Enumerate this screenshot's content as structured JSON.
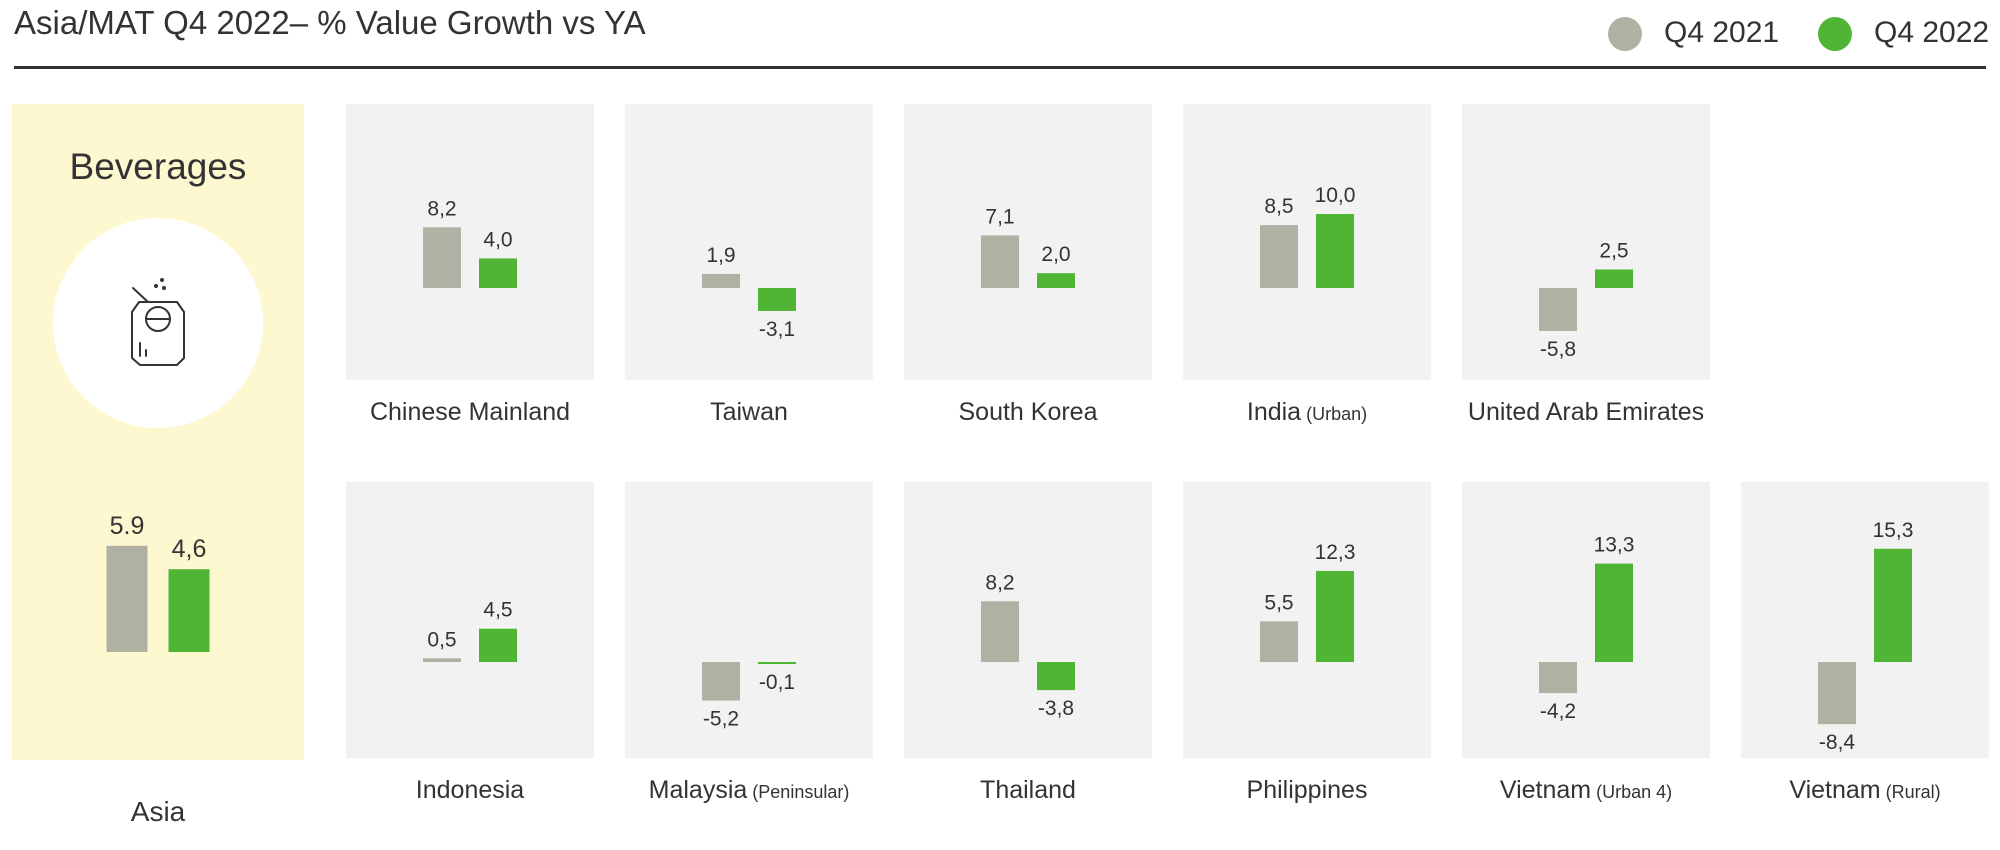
{
  "header": {
    "title": "Asia/MAT Q4 2022– % Value Growth vs YA"
  },
  "legend": {
    "items": [
      {
        "label": "Q4 2021",
        "color": "#b0b0a3"
      },
      {
        "label": "Q4 2022",
        "color": "#50b534"
      }
    ]
  },
  "colors": {
    "q4_2021": "#b0b0a3",
    "q4_2022": "#50b534",
    "panel_bg": "#f2f2f2",
    "asia_bg": "#fef8d1"
  },
  "asia": {
    "heading": "Beverages",
    "icon": "beverage-can-icon",
    "label": "Asia"
  },
  "chart_data": {
    "type": "bar",
    "series": [
      {
        "name": "Q4 2021"
      },
      {
        "name": "Q4 2022"
      }
    ],
    "panels": [
      {
        "id": "asia",
        "country": "Asia",
        "qualifier": "",
        "values": [
          5.9,
          4.6
        ],
        "labels": [
          "5.9",
          "4,6"
        ]
      },
      {
        "id": "chinese-mainland",
        "country": "Chinese Mainland",
        "qualifier": "",
        "values": [
          8.2,
          4.0
        ],
        "labels": [
          "8,2",
          "4,0"
        ]
      },
      {
        "id": "taiwan",
        "country": "Taiwan",
        "qualifier": "",
        "values": [
          1.9,
          -3.1
        ],
        "labels": [
          "1,9",
          "-3,1"
        ]
      },
      {
        "id": "south-korea",
        "country": "South Korea",
        "qualifier": "",
        "values": [
          7.1,
          2.0
        ],
        "labels": [
          "7,1",
          "2,0"
        ]
      },
      {
        "id": "india",
        "country": "India",
        "qualifier": "(Urban)",
        "values": [
          8.5,
          10.0
        ],
        "labels": [
          "8,5",
          "10,0"
        ]
      },
      {
        "id": "uae",
        "country": "United Arab Emirates",
        "qualifier": "",
        "values": [
          -5.8,
          2.5
        ],
        "labels": [
          "-5,8",
          "2,5"
        ]
      },
      {
        "id": "indonesia",
        "country": "Indonesia",
        "qualifier": "",
        "values": [
          0.5,
          4.5
        ],
        "labels": [
          "0,5",
          "4,5"
        ]
      },
      {
        "id": "malaysia",
        "country": "Malaysia",
        "qualifier": "(Peninsular)",
        "values": [
          -5.2,
          -0.1
        ],
        "labels": [
          "-5,2",
          "-0,1"
        ]
      },
      {
        "id": "thailand",
        "country": "Thailand",
        "qualifier": "",
        "values": [
          8.2,
          -3.8
        ],
        "labels": [
          "8,2",
          "-3,8"
        ]
      },
      {
        "id": "philippines",
        "country": "Philippines",
        "qualifier": "",
        "values": [
          5.5,
          12.3
        ],
        "labels": [
          "5,5",
          "12,3"
        ]
      },
      {
        "id": "vietnam-urban4",
        "country": "Vietnam",
        "qualifier": "(Urban 4)",
        "values": [
          -4.2,
          13.3
        ],
        "labels": [
          "-4,2",
          "13,3"
        ]
      },
      {
        "id": "vietnam-rural",
        "country": "Vietnam",
        "qualifier": "(Rural)",
        "values": [
          -8.4,
          15.3
        ],
        "labels": [
          "-8,4",
          "15,3"
        ]
      }
    ]
  }
}
